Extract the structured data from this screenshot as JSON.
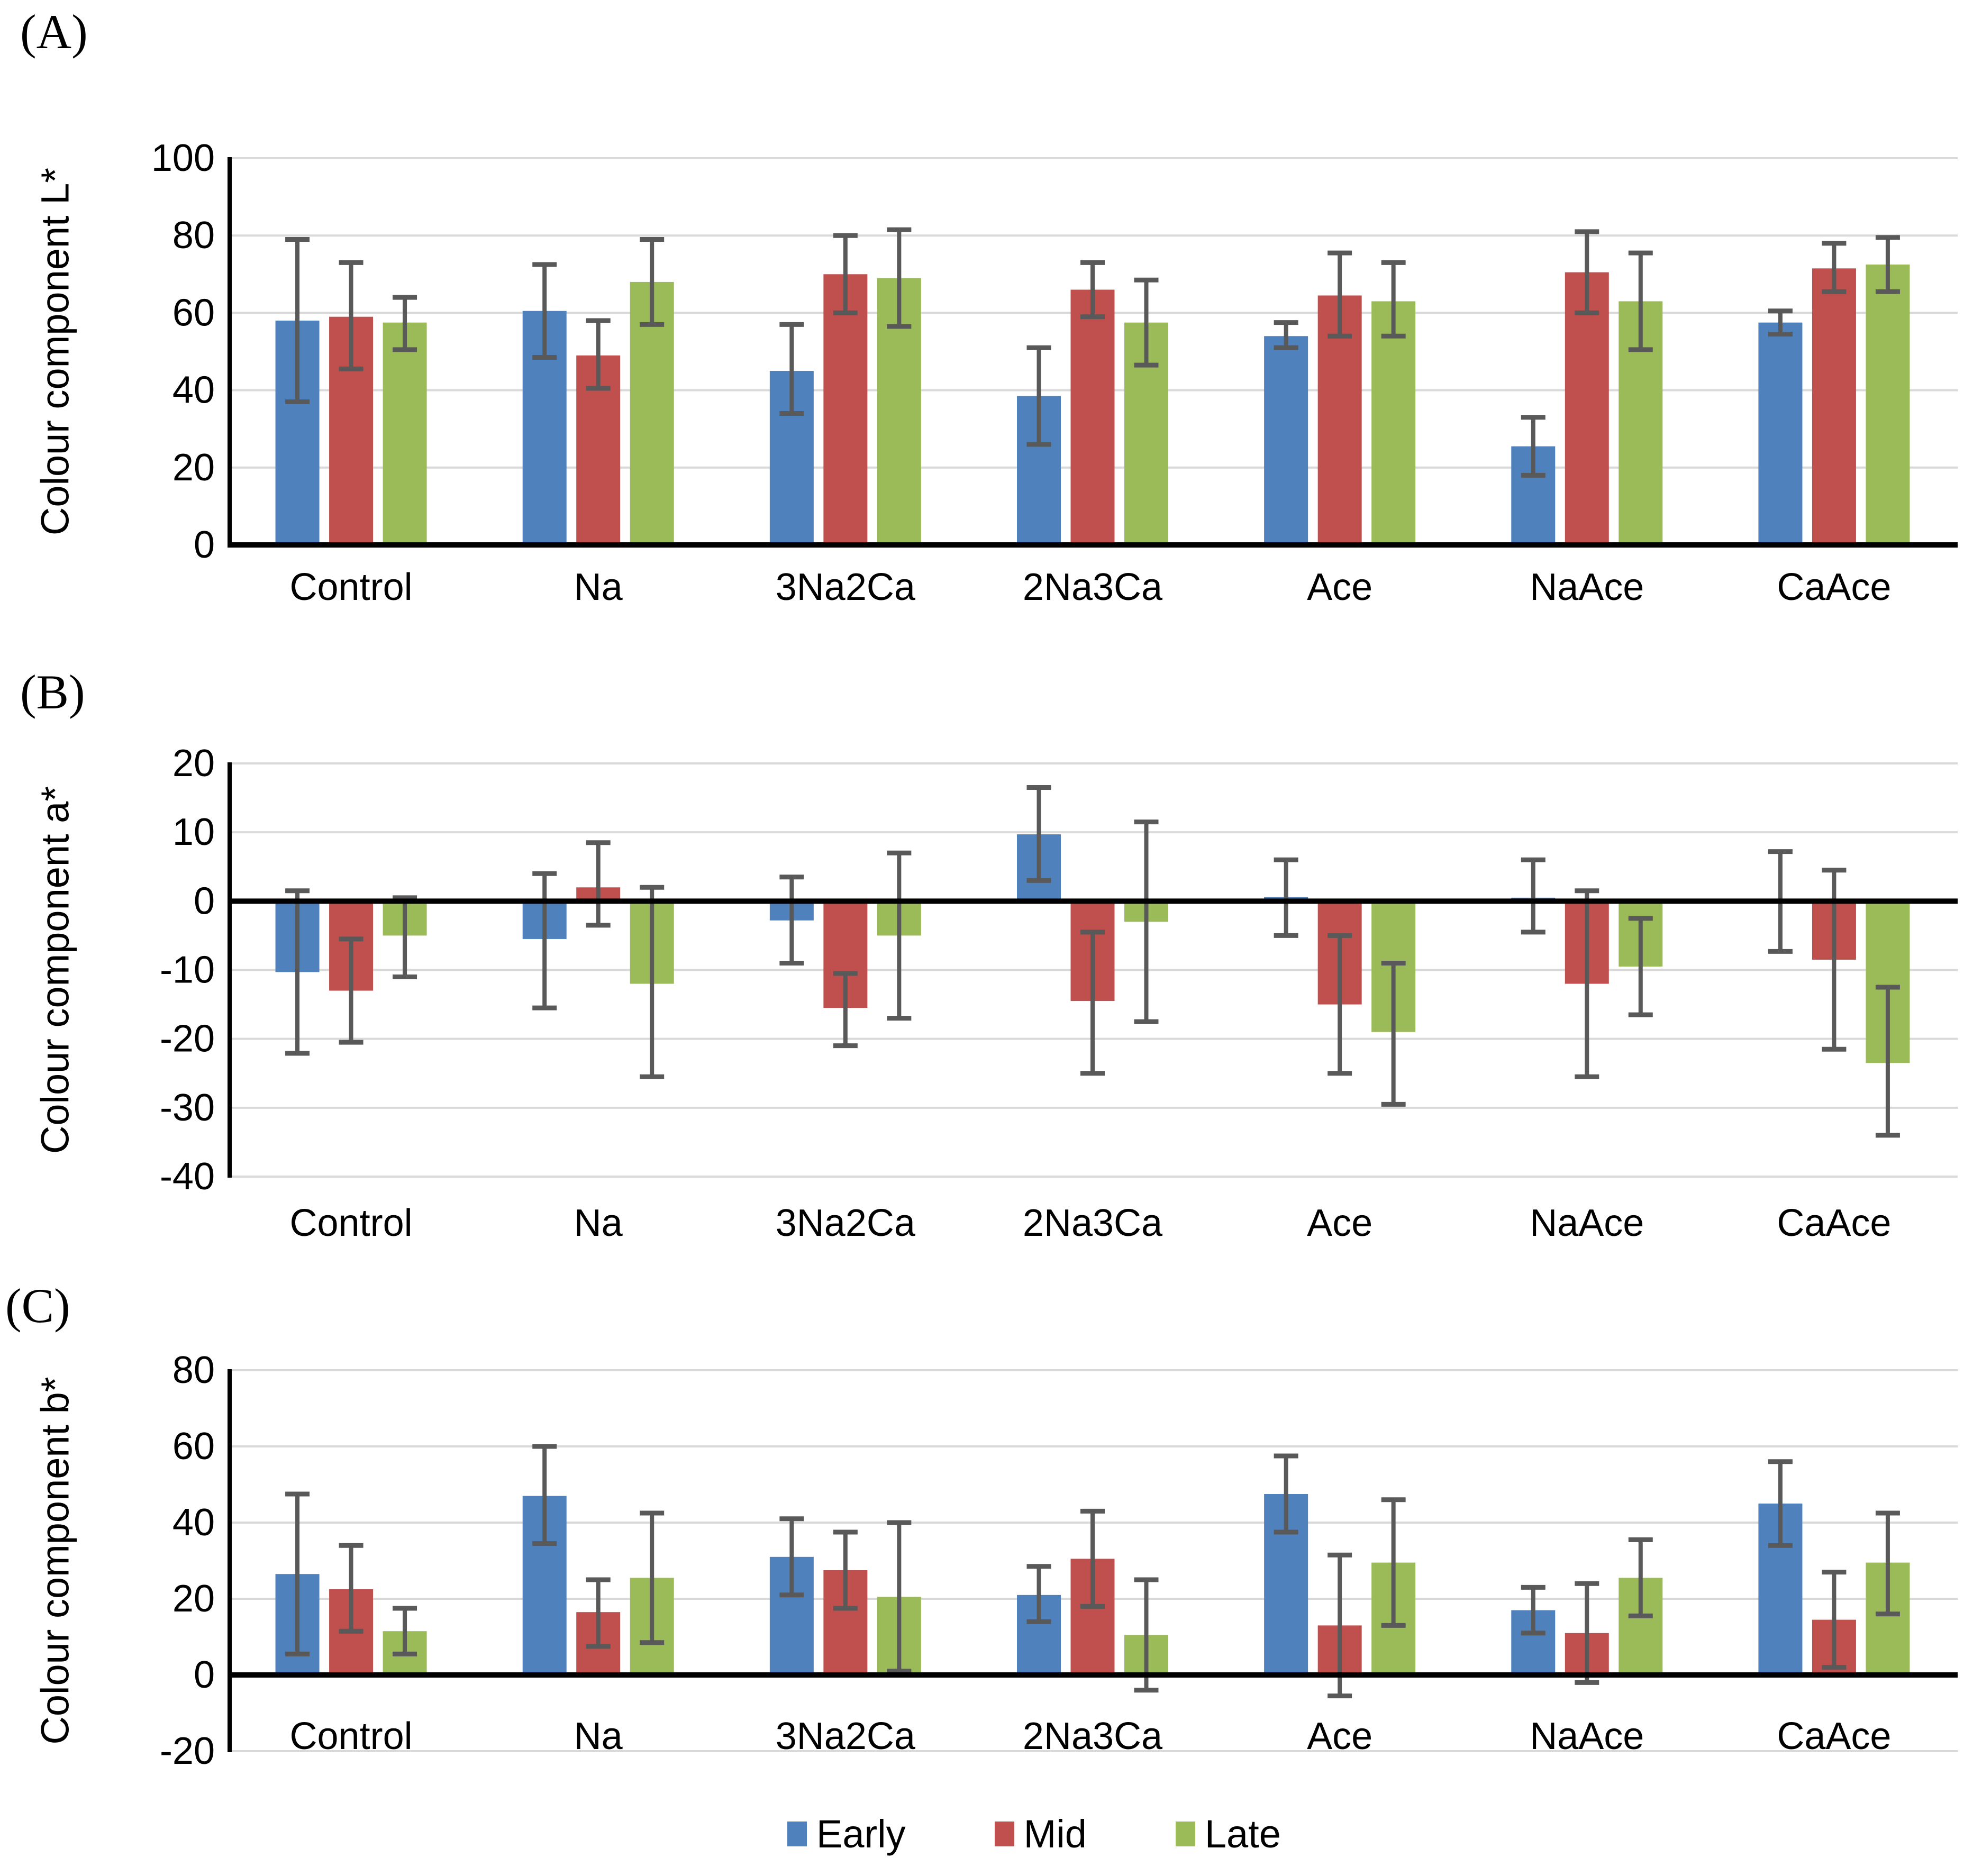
{
  "legend": {
    "items": [
      {
        "label": "Early",
        "color": "#4F81BD"
      },
      {
        "label": "Mid",
        "color": "#C0504D"
      },
      {
        "label": "Late",
        "color": "#9BBB59"
      }
    ]
  },
  "colors": {
    "error_bar": "#595959",
    "gridline": "#D9D9D9",
    "axis": "#000000",
    "text": "#000000"
  },
  "chart_data": [
    {
      "panel_label": "(A)",
      "type": "bar",
      "title": "",
      "xlabel": "",
      "ylabel": "Colour component L*",
      "ylim": [
        0,
        100
      ],
      "yticks": [
        0,
        20,
        40,
        60,
        80,
        100
      ],
      "grid": true,
      "legend_position": "bottom",
      "categories": [
        "Control",
        "Na",
        "3Na2Ca",
        "2Na3Ca",
        "Ace",
        "NaAce",
        "CaAce"
      ],
      "series": [
        {
          "name": "Early",
          "color": "#4F81BD",
          "values": [
            58,
            60.5,
            45,
            38.5,
            54,
            25.5,
            57.5
          ],
          "err_up": [
            21,
            12,
            12,
            12.5,
            3.5,
            7.5,
            3
          ],
          "err_down": [
            21,
            12,
            11,
            12.5,
            3,
            7.5,
            3
          ]
        },
        {
          "name": "Mid",
          "color": "#C0504D",
          "values": [
            59,
            49,
            70,
            66,
            64.5,
            70.5,
            71.5
          ],
          "err_up": [
            14,
            9,
            10,
            7,
            11,
            10.5,
            6.5
          ],
          "err_down": [
            13.5,
            8.5,
            10,
            7,
            10.5,
            10.5,
            6
          ]
        },
        {
          "name": "Late",
          "color": "#9BBB59",
          "values": [
            57.5,
            68,
            69,
            57.5,
            63,
            63,
            72.5
          ],
          "err_up": [
            6.5,
            11,
            12.5,
            11,
            10,
            12.5,
            7
          ],
          "err_down": [
            7,
            11,
            12.5,
            11,
            9,
            12.5,
            7
          ]
        }
      ]
    },
    {
      "panel_label": "(B)",
      "type": "bar",
      "title": "",
      "xlabel": "",
      "ylabel": "Colour component a*",
      "ylim": [
        -40,
        20
      ],
      "yticks": [
        -40,
        -30,
        -20,
        -10,
        0,
        10,
        20
      ],
      "grid": true,
      "legend_position": "bottom",
      "categories": [
        "Control",
        "Na",
        "3Na2Ca",
        "2Na3Ca",
        "Ace",
        "NaAce",
        "CaAce"
      ],
      "series": [
        {
          "name": "Early",
          "color": "#4F81BD",
          "values": [
            -10.3,
            -5.5,
            -2.8,
            9.7,
            0.6,
            0.5,
            0.2
          ],
          "err_up": [
            11.8,
            9.5,
            6.3,
            6.8,
            5.4,
            5.5,
            7
          ],
          "err_down": [
            11.8,
            10,
            6.2,
            6.7,
            5.6,
            5,
            7.5
          ]
        },
        {
          "name": "Mid",
          "color": "#C0504D",
          "values": [
            -13,
            2,
            -15.5,
            -14.5,
            -15,
            -12,
            -8.5
          ],
          "err_up": [
            7.5,
            6.5,
            5,
            10,
            10,
            13.5,
            13
          ],
          "err_down": [
            7.5,
            5.5,
            5.5,
            10.5,
            10,
            13.5,
            13
          ]
        },
        {
          "name": "Late",
          "color": "#9BBB59",
          "values": [
            -5,
            -12,
            -5,
            -3,
            -19,
            -9.5,
            -23.5
          ],
          "err_up": [
            5.5,
            14,
            12,
            14.5,
            10,
            7,
            11
          ],
          "err_down": [
            6,
            13.5,
            12,
            14.5,
            10.5,
            7,
            10.5
          ]
        }
      ]
    },
    {
      "panel_label": "(C)",
      "type": "bar",
      "title": "",
      "xlabel": "",
      "ylabel": "Colour component b*",
      "ylim": [
        -20,
        80
      ],
      "yticks": [
        -20,
        0,
        20,
        40,
        60,
        80
      ],
      "grid": true,
      "legend_position": "bottom",
      "categories": [
        "Control",
        "Na",
        "3Na2Ca",
        "2Na3Ca",
        "Ace",
        "NaAce",
        "CaAce"
      ],
      "series": [
        {
          "name": "Early",
          "color": "#4F81BD",
          "values": [
            26.5,
            47,
            31,
            21,
            47.5,
            17,
            45
          ],
          "err_up": [
            21,
            13,
            10,
            7.5,
            10,
            6,
            11
          ],
          "err_down": [
            21,
            12.5,
            10,
            7,
            10,
            6,
            11
          ]
        },
        {
          "name": "Mid",
          "color": "#C0504D",
          "values": [
            22.5,
            16.5,
            27.5,
            30.5,
            13,
            11,
            14.5
          ],
          "err_up": [
            11.5,
            8.5,
            10,
            12.5,
            18.5,
            13,
            12.5
          ],
          "err_down": [
            11,
            9,
            10,
            12.5,
            18.5,
            13,
            12.5
          ]
        },
        {
          "name": "Late",
          "color": "#9BBB59",
          "values": [
            11.5,
            25.5,
            20.5,
            10.5,
            29.5,
            25.5,
            29.5
          ],
          "err_up": [
            6,
            17,
            19.5,
            14.5,
            16.5,
            10,
            13
          ],
          "err_down": [
            6,
            17,
            19.5,
            14.5,
            16.5,
            10,
            13.5
          ]
        }
      ]
    }
  ]
}
